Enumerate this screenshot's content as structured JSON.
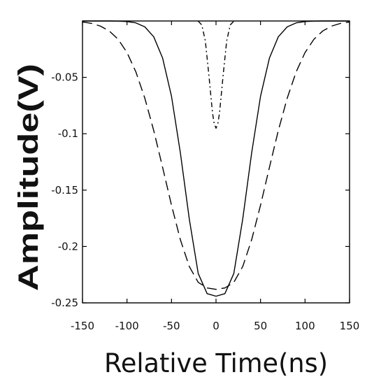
{
  "chart_data": {
    "type": "line",
    "title": "",
    "xlabel": "Relative Time(ns)",
    "ylabel": "Amplitude(V)",
    "xlim": [
      -150,
      150
    ],
    "ylim": [
      -0.25,
      0.0
    ],
    "xticks": [
      -150,
      -100,
      -50,
      0,
      50,
      100,
      150
    ],
    "xtick_labels": [
      "-150",
      "-100",
      "-50",
      "0",
      "50",
      "100",
      "150"
    ],
    "yticks": [
      -0.05,
      -0.1,
      -0.15,
      -0.2,
      -0.25
    ],
    "ytick_labels": [
      "-0.05",
      "-0.1",
      "-0.15",
      "-0.2",
      "-0.25"
    ],
    "grid": false,
    "legend": "none",
    "x": [
      -150,
      -140,
      -130,
      -120,
      -110,
      -100,
      -90,
      -80,
      -70,
      -60,
      -50,
      -40,
      -30,
      -20,
      -10,
      0,
      10,
      20,
      30,
      40,
      50,
      60,
      70,
      80,
      90,
      100,
      110,
      120,
      130,
      140,
      150
    ],
    "series": [
      {
        "style": "solid",
        "color": "#000000",
        "values": [
          0.0,
          0.0,
          0.0,
          0.0,
          -0.0001,
          -0.0005,
          -0.0017,
          -0.0052,
          -0.014,
          -0.0329,
          -0.0668,
          -0.1172,
          -0.1757,
          -0.2239,
          -0.2418,
          -0.2441,
          -0.2418,
          -0.2239,
          -0.1757,
          -0.1172,
          -0.0668,
          -0.0329,
          -0.014,
          -0.0052,
          -0.0017,
          -0.0005,
          -0.0001,
          0.0,
          0.0,
          0.0,
          0.0
        ]
      },
      {
        "style": "dashed",
        "color": "#000000",
        "values": [
          -0.0009,
          -0.0021,
          -0.0045,
          -0.0088,
          -0.0162,
          -0.028,
          -0.0452,
          -0.0684,
          -0.0971,
          -0.1298,
          -0.1634,
          -0.1941,
          -0.2178,
          -0.2318,
          -0.2368,
          -0.238,
          -0.2368,
          -0.2318,
          -0.2178,
          -0.1941,
          -0.1634,
          -0.1298,
          -0.0971,
          -0.0684,
          -0.0452,
          -0.028,
          -0.0162,
          -0.0088,
          -0.0045,
          -0.0021,
          -0.0009
        ]
      },
      {
        "style": "dash-dot",
        "color": "#000000",
        "x": [
          -20,
          -16,
          -12,
          -8,
          -4,
          -2,
          0,
          2,
          4,
          8,
          12,
          16,
          20
        ],
        "values": [
          -0.0002,
          -0.0035,
          -0.0176,
          -0.0481,
          -0.0812,
          -0.0913,
          -0.0951,
          -0.0913,
          -0.0812,
          -0.0481,
          -0.0176,
          -0.0035,
          -0.0002
        ]
      }
    ]
  }
}
